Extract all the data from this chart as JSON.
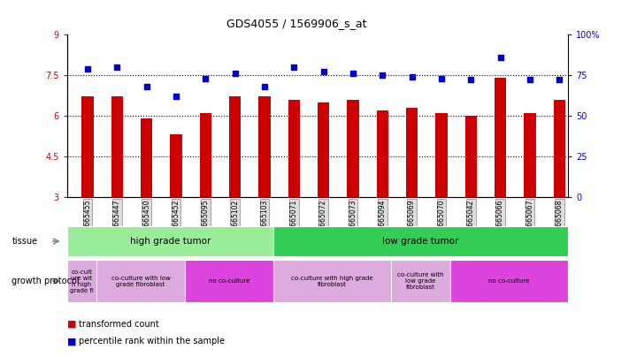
{
  "title": "GDS4055 / 1569906_s_at",
  "samples": [
    "GSM665455",
    "GSM665447",
    "GSM665450",
    "GSM665452",
    "GSM665095",
    "GSM665102",
    "GSM665103",
    "GSM665071",
    "GSM665072",
    "GSM665073",
    "GSM665094",
    "GSM665069",
    "GSM665070",
    "GSM665042",
    "GSM665066",
    "GSM665067",
    "GSM665068"
  ],
  "bar_values": [
    6.7,
    6.7,
    5.9,
    5.3,
    6.1,
    6.7,
    6.7,
    6.6,
    6.5,
    6.6,
    6.2,
    6.3,
    6.1,
    6.0,
    7.4,
    6.1,
    6.6
  ],
  "dot_values": [
    79,
    80,
    68,
    62,
    73,
    76,
    68,
    80,
    77,
    76,
    75,
    74,
    73,
    72,
    86,
    72,
    72
  ],
  "ylim_left": [
    3,
    9
  ],
  "ylim_right": [
    0,
    100
  ],
  "yticks_left": [
    3,
    4.5,
    6,
    7.5,
    9
  ],
  "yticks_right": [
    0,
    25,
    50,
    75,
    100
  ],
  "ytick_labels_left": [
    "3",
    "4.5",
    "6",
    "7.5",
    "9"
  ],
  "ytick_labels_right": [
    "0",
    "25",
    "50",
    "75",
    "100%"
  ],
  "bar_color": "#cc0000",
  "dot_color": "#0000cc",
  "tissue_segments": [
    {
      "start": 0,
      "end": 7,
      "color": "#99ee99",
      "label": "high grade tumor"
    },
    {
      "start": 7,
      "end": 17,
      "color": "#33cc55",
      "label": "low grade tumor"
    }
  ],
  "growth_segments": [
    {
      "start": 0,
      "end": 1,
      "color": "#ddaadd",
      "label": "co-cult\nure wit\nh high\ngrade fi"
    },
    {
      "start": 1,
      "end": 4,
      "color": "#ddaadd",
      "label": "co-culture with low\ngrade fibroblast"
    },
    {
      "start": 4,
      "end": 7,
      "color": "#dd44dd",
      "label": "no co-culture"
    },
    {
      "start": 7,
      "end": 11,
      "color": "#ddaadd",
      "label": "co-culture with high grade\nfibroblast"
    },
    {
      "start": 11,
      "end": 13,
      "color": "#ddaadd",
      "label": "co-culture with\nlow grade\nfibroblast"
    },
    {
      "start": 13,
      "end": 17,
      "color": "#dd44dd",
      "label": "no co-culture"
    }
  ],
  "legend_red": "transformed count",
  "legend_blue": "percentile rank within the sample",
  "tissue_row_label": "tissue",
  "growth_row_label": "growth protocol",
  "xlim": [
    -0.7,
    16.3
  ]
}
